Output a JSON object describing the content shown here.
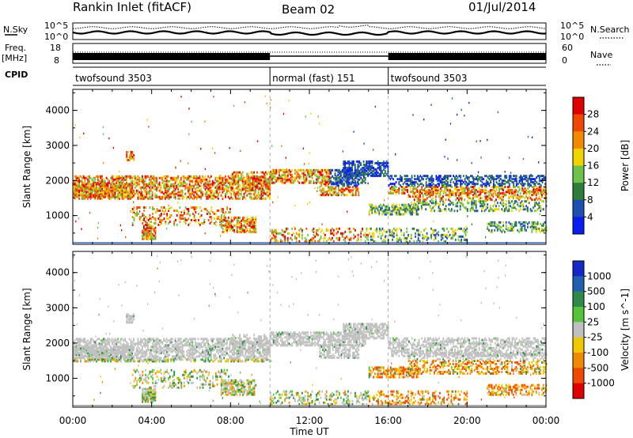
{
  "header": {
    "title": "Rankin Inlet (fitACF)",
    "beam": "Beam 02",
    "date": "01/Jul/2014"
  },
  "strip_labels": {
    "nsky": "N.Sky",
    "nsky_hi": "10^5",
    "nsky_lo": "10^0",
    "nsearch": "N.Search",
    "nsearch_hi": "10^5",
    "nsearch_lo": "10^0",
    "freq_top": "Freq.",
    "freq_unit": "[MHz]",
    "freq_hi": "18",
    "freq_lo": "8",
    "nave": "Nave",
    "nave_hi": "60",
    "nave_lo": "0",
    "cpid": "CPID"
  },
  "cpid_segments": [
    {
      "start_h": 0,
      "end_h": 10,
      "label": "twofsound 3503"
    },
    {
      "start_h": 10,
      "end_h": 16,
      "label": "normal (fast) 151"
    },
    {
      "start_h": 16,
      "end_h": 24,
      "label": "twofsound 3503"
    }
  ],
  "chart_data": [
    {
      "type": "heatmap",
      "name": "power",
      "xlabel": "",
      "ylabel": "Slant Range [km]",
      "xlim": [
        0,
        24
      ],
      "ylim": [
        180,
        4600
      ],
      "yticks": [
        1000,
        2000,
        3000,
        4000
      ],
      "colorbar": {
        "label": "Power [dB]",
        "ticks": [
          "4",
          "8",
          "12",
          "16",
          "20",
          "24",
          "28"
        ],
        "colors": [
          "#0a1cf0",
          "#1d4fb0",
          "#2e7d3a",
          "#6cc24a",
          "#f0d400",
          "#f08a00",
          "#f04800",
          "#e00000"
        ]
      }
    },
    {
      "type": "heatmap",
      "name": "velocity",
      "xlabel": "Time UT",
      "ylabel": "Slant Range [km]",
      "xlim": [
        0,
        24
      ],
      "ylim": [
        180,
        4600
      ],
      "yticks": [
        1000,
        2000,
        3000,
        4000
      ],
      "xticks": [
        "00:00",
        "04:00",
        "08:00",
        "12:00",
        "16:00",
        "20:00",
        "00:00"
      ],
      "colorbar": {
        "label": "Velocity [m s^-1]",
        "ticks": [
          "1000",
          "500",
          "100",
          "25",
          "-25",
          "-100",
          "-500",
          "-1000"
        ],
        "colors": [
          "#1428c8",
          "#2060b0",
          "#2f8a4a",
          "#56c43a",
          "#c0c0c0",
          "#f0c800",
          "#f08a00",
          "#f04800",
          "#e00000"
        ]
      }
    }
  ]
}
